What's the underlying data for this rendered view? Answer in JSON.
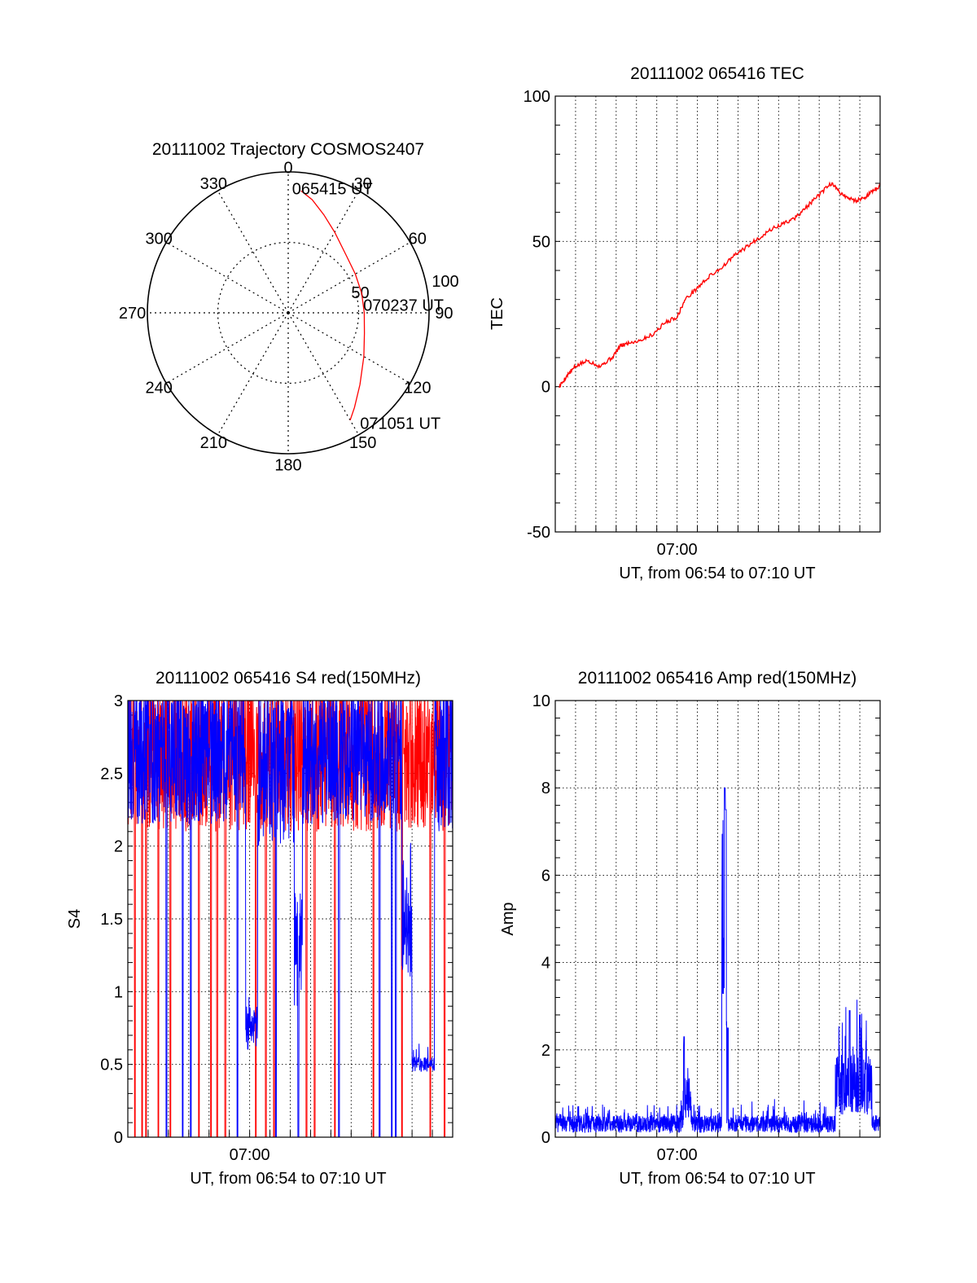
{
  "chart_data": [
    {
      "type": "polar",
      "title": "20111002 Trajectory COSMOS2407",
      "azimuth_ticks": [
        "0",
        "30",
        "60",
        "90",
        "120",
        "150",
        "180",
        "210",
        "240",
        "270",
        "300",
        "330"
      ],
      "radial_ticks": [
        "50",
        "100"
      ],
      "grid": true,
      "series": [
        {
          "color": "#ff0000",
          "points_az_zenith": [
            [
              6,
              87
            ],
            [
              12,
              82
            ],
            [
              20,
              74
            ],
            [
              30,
              66
            ],
            [
              45,
              58
            ],
            [
              60,
              55
            ],
            [
              75,
              54
            ],
            [
              90,
              54
            ],
            [
              105,
              56
            ],
            [
              120,
              62
            ],
            [
              135,
              72
            ],
            [
              145,
              82
            ],
            [
              150,
              88
            ]
          ]
        }
      ],
      "annotations": [
        {
          "text": "065415 UT",
          "az": 4,
          "zen": 89
        },
        {
          "text": "070237 UT",
          "az": 84,
          "zen": 57
        },
        {
          "text": "071051 UT",
          "az": 145,
          "zen": 95
        }
      ]
    },
    {
      "type": "line",
      "title": "20111002 065416 TEC",
      "xlabel": "UT, from 06:54 to 07:10 UT",
      "ylabel": "TEC",
      "x_ticks": [
        "07:00"
      ],
      "xlim": [
        "06:54",
        "07:10"
      ],
      "ylim": [
        -50,
        100
      ],
      "y_ticks": [
        -50,
        0,
        50,
        100
      ],
      "grid": true,
      "series": [
        {
          "color": "#ff0000",
          "x_minutes": [
            0.2,
            0.6,
            1.0,
            1.6,
            2.2,
            2.8,
            3.2,
            3.6,
            4.2,
            4.8,
            5.4,
            6.0,
            6.4,
            7.0,
            7.6,
            8.2,
            8.8,
            9.4,
            10.0,
            10.6,
            11.2,
            11.8,
            12.4,
            13.0,
            13.6,
            14.0,
            14.4,
            14.8,
            15.2,
            15.6,
            16.0
          ],
          "y": [
            0,
            4,
            7,
            9,
            7,
            10,
            14,
            15,
            16,
            18,
            22,
            24,
            30,
            34,
            38,
            41,
            45,
            48,
            51,
            54,
            56,
            58,
            62,
            66,
            70,
            67,
            65,
            64,
            65,
            67,
            69
          ]
        }
      ]
    },
    {
      "type": "line",
      "title": "20111002 065416 S4 red(150MHz)",
      "xlabel": "UT, from 06:54 to 07:10 UT",
      "ylabel": "S4",
      "x_ticks": [
        "07:00"
      ],
      "xlim": [
        "06:54",
        "07:10"
      ],
      "ylim": [
        0,
        3
      ],
      "y_ticks": [
        0,
        0.5,
        1,
        1.5,
        2,
        2.5,
        3
      ],
      "grid": true,
      "series": [
        {
          "color": "#ff0000",
          "kind": "noisy",
          "clip": 3,
          "segments": [
            [
              0,
              16,
              2.6,
              0.5
            ]
          ],
          "drops": [
            0.35,
            0.7,
            0.9,
            1.5,
            2.1,
            3.5,
            4.1,
            4.4,
            4.8,
            6.3,
            6.8,
            7.2,
            8.8,
            9.2,
            10.2,
            12.1,
            13.5,
            14.9,
            15.6
          ],
          "seed": 7
        },
        {
          "color": "#0000ff",
          "kind": "noisy",
          "clip": 3,
          "segments": [
            [
              0,
              5.8,
              2.6,
              0.45
            ],
            [
              5.8,
              6.4,
              0.75,
              0.15
            ],
            [
              6.4,
              8.2,
              2.5,
              0.5
            ],
            [
              8.2,
              8.6,
              1.3,
              0.4
            ],
            [
              8.6,
              13.5,
              2.6,
              0.45
            ],
            [
              13.5,
              14.0,
              1.4,
              0.3
            ],
            [
              14.0,
              15.1,
              0.5,
              0.05
            ],
            [
              15.1,
              16,
              2.6,
              0.5
            ]
          ],
          "drops": [
            1.9,
            2.7,
            3.1,
            5.4,
            7.3,
            8.4,
            10.4,
            12.4,
            13.0,
            13.2
          ],
          "seed": 13
        }
      ]
    },
    {
      "type": "line",
      "title": "20111002 065416 Amp red(150MHz)",
      "xlabel": "UT, from 06:54 to 07:10 UT",
      "ylabel": "Amp",
      "x_ticks": [
        "07:00"
      ],
      "xlim": [
        "06:54",
        "07:10"
      ],
      "ylim": [
        0,
        10
      ],
      "y_ticks": [
        0,
        2,
        4,
        6,
        8,
        10
      ],
      "grid": true,
      "series": [
        {
          "color": "#0000ff",
          "kind": "noisy",
          "clip": 10,
          "segments": [
            [
              0,
              6.3,
              0.3,
              0.2
            ],
            [
              6.3,
              6.7,
              0.9,
              0.6
            ],
            [
              6.7,
              8.2,
              0.3,
              0.2
            ],
            [
              8.2,
              8.45,
              5.0,
              2.5
            ],
            [
              8.45,
              13.8,
              0.3,
              0.2
            ],
            [
              13.8,
              15.6,
              1.2,
              0.7
            ],
            [
              15.6,
              16,
              0.3,
              0.2
            ]
          ],
          "peaks": [
            [
              6.35,
              2.3
            ],
            [
              8.35,
              8.0
            ],
            [
              8.4,
              7.5
            ],
            [
              8.5,
              2.5
            ],
            [
              14.5,
              2.9
            ],
            [
              15.0,
              2.8
            ]
          ],
          "seed": 29
        }
      ]
    }
  ]
}
